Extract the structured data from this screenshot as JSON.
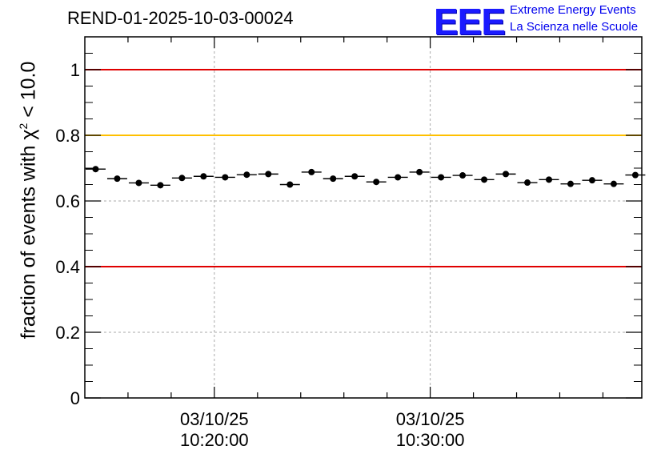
{
  "chart_data": {
    "type": "scatter",
    "title": "REND-01-2025-10-03-00024",
    "ylabel_prefix": "fraction of events with ",
    "ylabel_symbol": "χ",
    "ylabel_exp": "2",
    "ylabel_suffix": " < 10.0",
    "ylim": [
      0,
      1.1
    ],
    "yticks": [
      0,
      0.2,
      0.4,
      0.6,
      0.8,
      1
    ],
    "ytick_labels": [
      "0",
      "0.2",
      "0.4",
      "0.6",
      "0.8",
      "1"
    ],
    "xrange_minutes": [
      0,
      25.8
    ],
    "xticks_major_minutes": [
      6,
      16
    ],
    "xtick_labels": [
      {
        "date": "03/10/25",
        "time": "10:20:00"
      },
      {
        "date": "03/10/25",
        "time": "10:30:00"
      }
    ],
    "reference_lines": [
      {
        "y": 1.0,
        "color": "#e00000"
      },
      {
        "y": 0.8,
        "color": "#ffc000"
      },
      {
        "y": 0.4,
        "color": "#e00000"
      }
    ],
    "bin_width_minutes": 1,
    "series": [
      {
        "name": "fraction",
        "x": [
          0.5,
          1.5,
          2.5,
          3.5,
          4.5,
          5.5,
          6.5,
          7.5,
          8.5,
          9.5,
          10.5,
          11.5,
          12.5,
          13.5,
          14.5,
          15.5,
          16.5,
          17.5,
          18.5,
          19.5,
          20.5,
          21.5,
          22.5,
          23.5,
          24.5,
          25.5
        ],
        "y": [
          0.697,
          0.668,
          0.655,
          0.648,
          0.67,
          0.675,
          0.672,
          0.68,
          0.682,
          0.65,
          0.688,
          0.668,
          0.675,
          0.658,
          0.672,
          0.688,
          0.672,
          0.678,
          0.665,
          0.682,
          0.656,
          0.665,
          0.652,
          0.663,
          0.652,
          0.679
        ]
      }
    ],
    "grid": true
  },
  "logo": {
    "mark": "EEE",
    "line1": "Extreme Energy Events",
    "line2": "La Scienza nelle Scuole"
  }
}
